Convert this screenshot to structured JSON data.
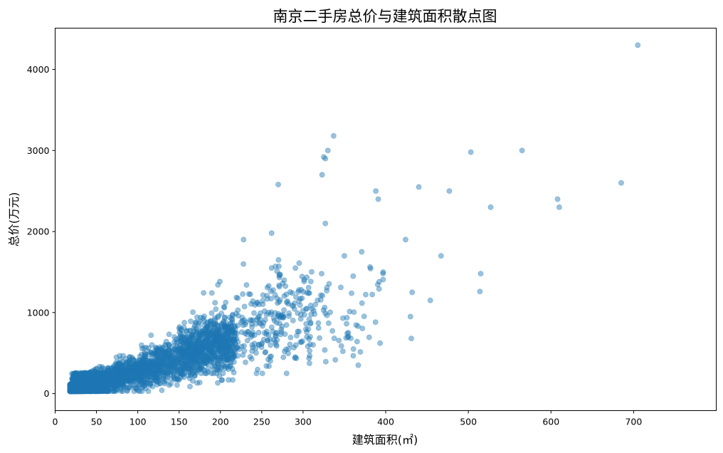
{
  "chart_data": {
    "type": "scatter",
    "title": "南京二手房总价与建筑面积散点图",
    "xlabel": "建筑面积(㎡)",
    "ylabel": "总价(万元)",
    "xlim": [
      0,
      800
    ],
    "ylim": [
      -210,
      4510
    ],
    "xticks": [
      0,
      50,
      100,
      150,
      200,
      250,
      300,
      400,
      500,
      600,
      700
    ],
    "yticks": [
      0,
      1000,
      2000,
      3000,
      4000
    ],
    "grid": false,
    "legend": "none",
    "marker_color": "#1f77b4",
    "marker_alpha": 0.45,
    "outlier_points": [
      {
        "x": 705,
        "y": 4300
      },
      {
        "x": 337,
        "y": 3180
      },
      {
        "x": 330,
        "y": 3000
      },
      {
        "x": 325,
        "y": 2920
      },
      {
        "x": 327,
        "y": 2900
      },
      {
        "x": 323,
        "y": 2700
      },
      {
        "x": 270,
        "y": 2580
      },
      {
        "x": 388,
        "y": 2500
      },
      {
        "x": 391,
        "y": 2400
      },
      {
        "x": 440,
        "y": 2550
      },
      {
        "x": 477,
        "y": 2500
      },
      {
        "x": 503,
        "y": 2980
      },
      {
        "x": 565,
        "y": 3000
      },
      {
        "x": 527,
        "y": 2300
      },
      {
        "x": 608,
        "y": 2400
      },
      {
        "x": 610,
        "y": 2300
      },
      {
        "x": 685,
        "y": 2600
      },
      {
        "x": 327,
        "y": 2100
      },
      {
        "x": 228,
        "y": 1900
      },
      {
        "x": 262,
        "y": 1980
      },
      {
        "x": 424,
        "y": 1900
      },
      {
        "x": 467,
        "y": 1700
      },
      {
        "x": 515,
        "y": 1480
      },
      {
        "x": 514,
        "y": 1260
      },
      {
        "x": 454,
        "y": 1150
      },
      {
        "x": 432,
        "y": 1250
      },
      {
        "x": 430,
        "y": 950
      },
      {
        "x": 431,
        "y": 680
      },
      {
        "x": 361,
        "y": 550
      },
      {
        "x": 397,
        "y": 1500
      },
      {
        "x": 371,
        "y": 1750
      },
      {
        "x": 350,
        "y": 1700
      }
    ]
  }
}
